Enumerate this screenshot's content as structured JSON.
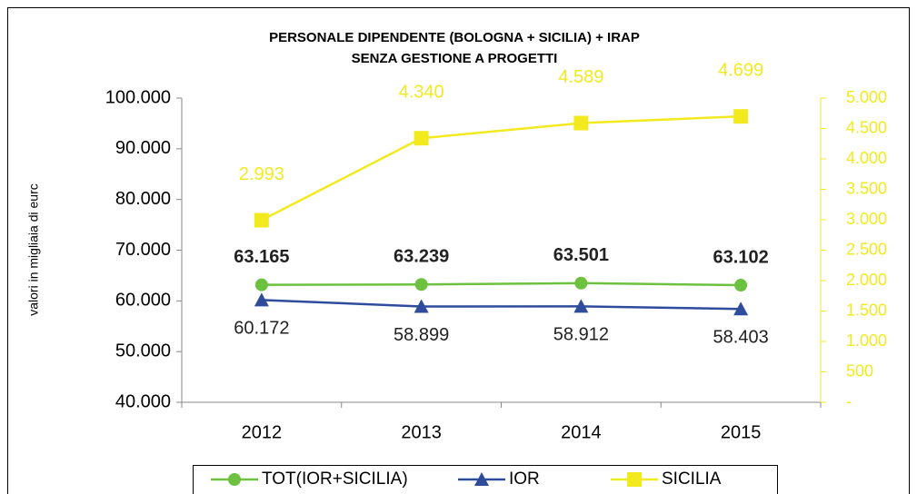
{
  "chart_data": {
    "type": "line",
    "title": "PERSONALE DIPENDENTE (BOLOGNA + SICILIA) + IRAP",
    "subtitle": "SENZA GESTIONE A PROGETTI",
    "y_label": "valori in migliaia di eurc",
    "categories": [
      "2012",
      "2013",
      "2014",
      "2015"
    ],
    "series": [
      {
        "name": "TOT(IOR+SICILIA)",
        "color": "#6cc13f",
        "marker": "circle",
        "values": [
          63165,
          63239,
          63501,
          63102
        ],
        "value_labels": [
          "63.165",
          "63.239",
          "63.501",
          "63.102"
        ]
      },
      {
        "name": "IOR",
        "color": "#2f4c9c",
        "marker": "triangle",
        "values": [
          60172,
          58899,
          58912,
          58403
        ],
        "value_labels": [
          "60.172",
          "58.899",
          "58.912",
          "58.403"
        ]
      },
      {
        "name": "SICILIA",
        "color": "#f2ea1e",
        "marker": "square",
        "axis": "y2",
        "values": [
          2993,
          4340,
          4589,
          4699
        ],
        "value_labels": [
          "2.993",
          "4.340",
          "4.589",
          "4.699"
        ]
      }
    ],
    "ylim": [
      40000,
      100000
    ],
    "yticks": [
      {
        "value": 40000,
        "label": "40.000"
      },
      {
        "value": 50000,
        "label": "50.000"
      },
      {
        "value": 60000,
        "label": "60.000"
      },
      {
        "value": 70000,
        "label": "70.000"
      },
      {
        "value": 80000,
        "label": "80.000"
      },
      {
        "value": 90000,
        "label": "90.000"
      },
      {
        "value": 100000,
        "label": "100.000"
      }
    ],
    "y2lim": [
      0,
      5000
    ],
    "y2ticks": [
      {
        "value": 0,
        "label": "-"
      },
      500,
      {
        "value": 1000,
        "label": "1.000"
      },
      {
        "value": 1500,
        "label": "1.500"
      },
      {
        "value": 2000,
        "label": "2.000"
      },
      {
        "value": 2500,
        "label": "2.500"
      },
      {
        "value": 3000,
        "label": "3.000"
      },
      {
        "value": 3500,
        "label": "3.500"
      },
      {
        "value": 4000,
        "label": "4.000"
      },
      {
        "value": 4500,
        "label": "4.500"
      },
      {
        "value": 5000,
        "label": "5.000"
      }
    ],
    "y2_color": "#f2ea1e",
    "grid": false,
    "legend": "bottom"
  }
}
